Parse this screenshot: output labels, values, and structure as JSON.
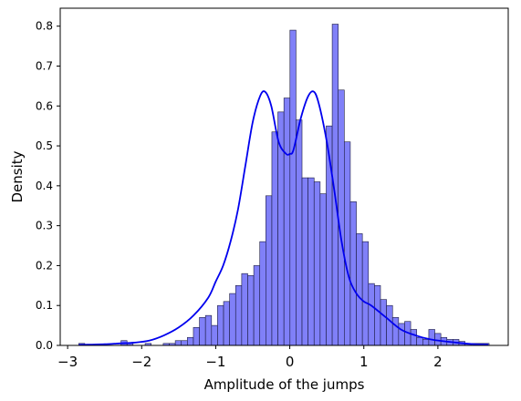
{
  "chart_data": {
    "type": "bar",
    "title": "",
    "xlabel": "Amplitude of the jumps",
    "ylabel": "Density",
    "xlim": [
      -3.1,
      2.95
    ],
    "ylim": [
      0,
      0.845
    ],
    "x_ticks": [
      -3,
      -2,
      -1,
      0,
      1,
      2
    ],
    "x_tick_labels": [
      "−3",
      "−2",
      "−1",
      "0",
      "1",
      "2"
    ],
    "y_ticks": [
      0.0,
      0.1,
      0.2,
      0.3,
      0.4,
      0.5,
      0.6,
      0.7,
      0.8
    ],
    "y_tick_labels": [
      "0.0",
      "0.1",
      "0.2",
      "0.3",
      "0.4",
      "0.5",
      "0.6",
      "0.7",
      "0.8"
    ],
    "grid": false,
    "bar_color": "#8080f8",
    "bar_edge_color": "#1a1a40",
    "kde_color": "#0000ee",
    "bins": {
      "start": -2.85,
      "width": 0.0815,
      "values": [
        0.005,
        0,
        0,
        0,
        0,
        0,
        0,
        0.012,
        0.005,
        0,
        0,
        0.005,
        0,
        0,
        0.005,
        0.005,
        0.012,
        0.012,
        0.02,
        0.045,
        0.07,
        0.075,
        0.05,
        0.1,
        0.11,
        0.13,
        0.15,
        0.18,
        0.175,
        0.2,
        0.26,
        0.375,
        0.535,
        0.585,
        0.62,
        0.79,
        0.565,
        0.42,
        0.42,
        0.41,
        0.38,
        0.55,
        0.805,
        0.64,
        0.51,
        0.36,
        0.28,
        0.26,
        0.155,
        0.15,
        0.115,
        0.1,
        0.07,
        0.055,
        0.06,
        0.04,
        0.02,
        0.015,
        0.04,
        0.03,
        0.02,
        0.015,
        0.015,
        0.01,
        0.005,
        0.005,
        0.005,
        0.005
      ]
    },
    "kde": {
      "x": [
        -2.85,
        -2.7,
        -2.5,
        -2.3,
        -2.1,
        -1.9,
        -1.7,
        -1.5,
        -1.3,
        -1.1,
        -1.0,
        -0.9,
        -0.8,
        -0.7,
        -0.6,
        -0.5,
        -0.4,
        -0.33,
        -0.25,
        -0.15,
        -0.05,
        0.0,
        0.05,
        0.15,
        0.25,
        0.33,
        0.4,
        0.5,
        0.6,
        0.7,
        0.8,
        0.9,
        1.0,
        1.1,
        1.3,
        1.5,
        1.7,
        1.9,
        2.1,
        2.3,
        2.5,
        2.68
      ],
      "y": [
        0.001,
        0.002,
        0.003,
        0.005,
        0.007,
        0.012,
        0.025,
        0.045,
        0.075,
        0.12,
        0.16,
        0.2,
        0.26,
        0.34,
        0.45,
        0.56,
        0.625,
        0.635,
        0.6,
        0.51,
        0.48,
        0.48,
        0.49,
        0.57,
        0.625,
        0.635,
        0.6,
        0.51,
        0.39,
        0.26,
        0.17,
        0.13,
        0.11,
        0.1,
        0.07,
        0.04,
        0.025,
        0.015,
        0.01,
        0.006,
        0.003,
        0.002
      ]
    }
  }
}
